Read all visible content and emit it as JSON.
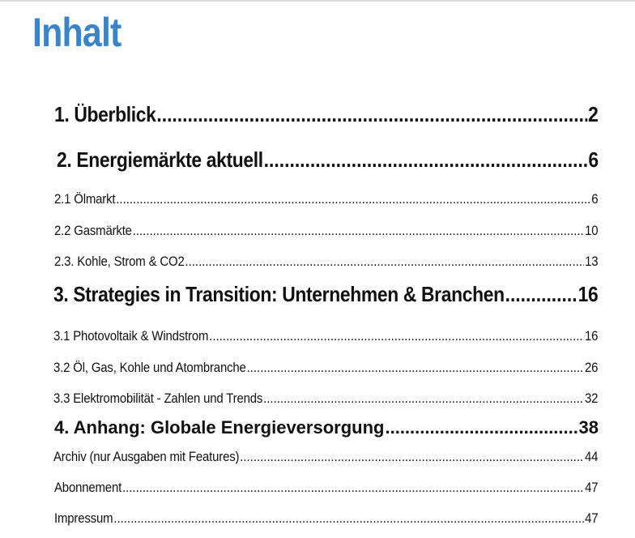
{
  "heading": "Inhalt",
  "heading_color": "#3d84c6",
  "entries": [
    {
      "label": "1. Überblick",
      "page": "2"
    },
    {
      "label": "2. Energiemärkte aktuell ",
      "page": "6"
    },
    {
      "label": "2.1 Ölmarkt",
      "page": "6"
    },
    {
      "label": "2.2 Gasmärkte",
      "page": "10"
    },
    {
      "label": "2.3. Kohle, Strom & CO2",
      "page": "13"
    },
    {
      "label": "3. Strategies in Transition: Unternehmen & Branchen ",
      "page": "16"
    },
    {
      "label": "3.1 Photovoltaik & Windstrom ",
      "page": "16"
    },
    {
      "label": "3.2 Öl, Gas, Kohle und Atombranche",
      "page": "26"
    },
    {
      "label": "3.3 Elektromobilität - Zahlen und Trends ",
      "page": "32"
    },
    {
      "label": "4. Anhang: Globale Energieversorgung ",
      "page": "38"
    },
    {
      "label": "Archiv (nur Ausgaben mit Features) ",
      "page": "44"
    },
    {
      "label": "Abonnement",
      "page": "47"
    },
    {
      "label": "Impressum ",
      "page": "47"
    }
  ]
}
